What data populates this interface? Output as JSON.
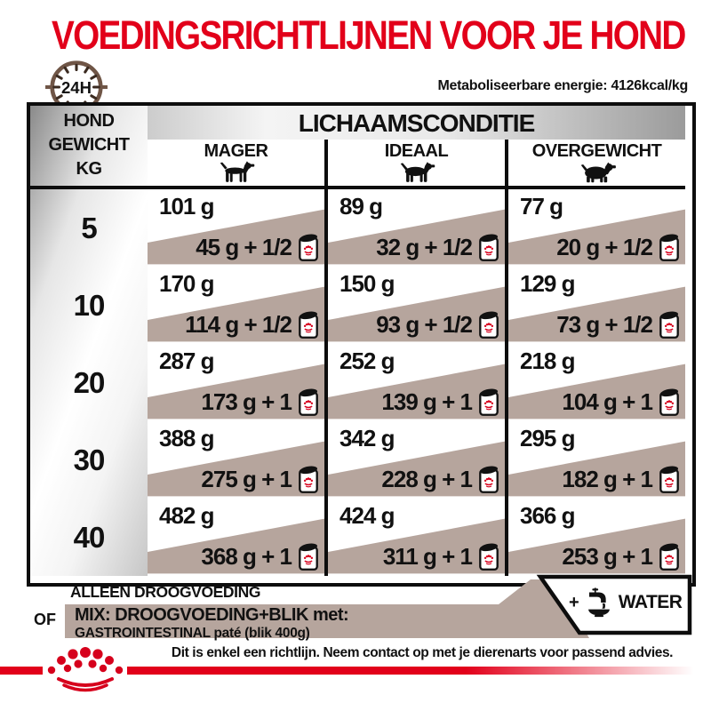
{
  "page": {
    "title": "VOEDINGSRICHTLIJNEN VOOR JE HOND",
    "energy_note": "Metaboliseerbare energie: 4126kcal/kg",
    "clock_label": "24H",
    "disclaimer": "Dit is enkel een richtlijn. Neem contact op met je dierenarts voor passend advies."
  },
  "table": {
    "weight_header": [
      "HOND",
      "GEWICHT",
      "KG"
    ],
    "condition_header": "LICHAAMSCONDITIE",
    "columns": [
      {
        "label": "MAGER",
        "icon": "dog-thin-icon"
      },
      {
        "label": "IDEAAL",
        "icon": "dog-normal-icon"
      },
      {
        "label": "OVERGEWICHT",
        "icon": "dog-fat-icon"
      }
    ],
    "rows": [
      {
        "weight": "5",
        "cells": [
          {
            "dry": "101 g",
            "mix": "45 g + 1/2"
          },
          {
            "dry": "89 g",
            "mix": "32 g + 1/2"
          },
          {
            "dry": "77 g",
            "mix": "20 g + 1/2"
          }
        ]
      },
      {
        "weight": "10",
        "cells": [
          {
            "dry": "170 g",
            "mix": "114 g + 1/2"
          },
          {
            "dry": "150 g",
            "mix": "93 g + 1/2"
          },
          {
            "dry": "129 g",
            "mix": "73 g + 1/2"
          }
        ]
      },
      {
        "weight": "20",
        "cells": [
          {
            "dry": "287 g",
            "mix": "173 g + 1"
          },
          {
            "dry": "252 g",
            "mix": "139 g + 1"
          },
          {
            "dry": "218 g",
            "mix": "104 g + 1"
          }
        ]
      },
      {
        "weight": "30",
        "cells": [
          {
            "dry": "388 g",
            "mix": "275 g + 1"
          },
          {
            "dry": "342 g",
            "mix": "228 g + 1"
          },
          {
            "dry": "295 g",
            "mix": "182 g + 1"
          }
        ]
      },
      {
        "weight": "40",
        "cells": [
          {
            "dry": "482 g",
            "mix": "368 g + 1"
          },
          {
            "dry": "424 g",
            "mix": "311 g + 1"
          },
          {
            "dry": "366 g",
            "mix": "253 g + 1"
          }
        ]
      }
    ]
  },
  "legend": {
    "dry_only": "ALLEEN DROOGVOEDING",
    "or_label": "OF",
    "mix_line1": "MIX: DROOGVOEDING+BLIK met:",
    "mix_line2": "GASTROINTESTINAL paté (blik 400g)",
    "plus": "+",
    "water_label": "WATER"
  },
  "colors": {
    "brand_red": "#e2001a",
    "taupe": "#b6a59d",
    "clock_brown": "#6f5546",
    "ink": "#111111"
  }
}
